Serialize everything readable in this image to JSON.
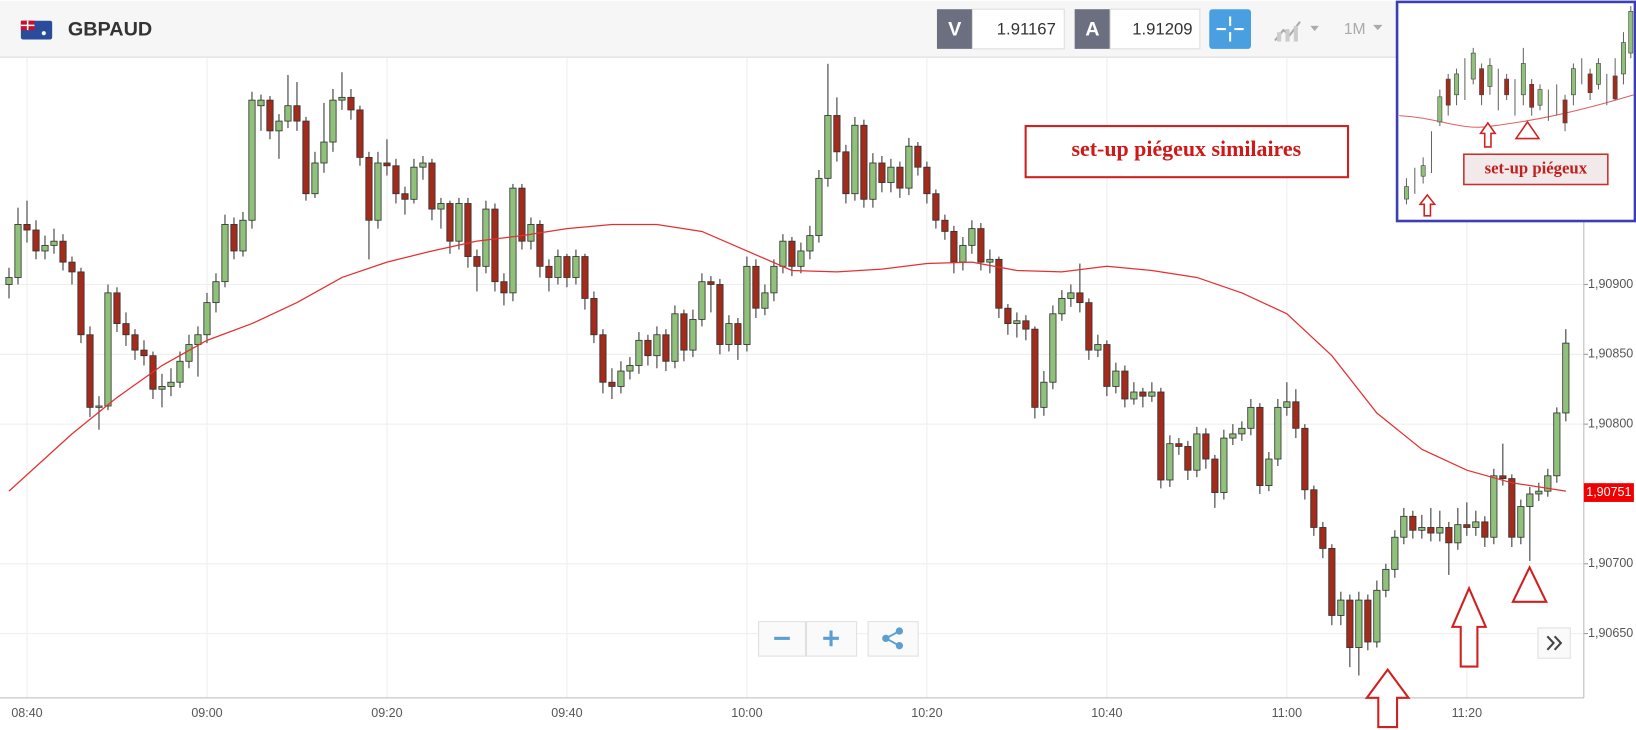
{
  "header": {
    "symbol": "GBPAUD",
    "sell_label": "V",
    "sell_price": "1.91167",
    "buy_label": "A",
    "buy_price": "1.91209",
    "timeframe": "1M"
  },
  "inset": {
    "annotation": "set-up piégeux"
  },
  "chart_data": {
    "type": "candlestick",
    "annotations": [
      "set-up piégeux similaires"
    ],
    "x": [
      "08:38",
      "08:39",
      "08:40",
      "08:41",
      "08:42",
      "08:43",
      "08:44",
      "08:45",
      "08:46",
      "08:47",
      "08:48",
      "08:49",
      "08:50",
      "08:51",
      "08:52",
      "08:53",
      "08:54",
      "08:55",
      "08:56",
      "08:57",
      "08:58",
      "08:59",
      "09:00",
      "09:01",
      "09:02",
      "09:03",
      "09:04",
      "09:05",
      "09:06",
      "09:07",
      "09:08",
      "09:09",
      "09:10",
      "09:11",
      "09:12",
      "09:13",
      "09:14",
      "09:15",
      "09:16",
      "09:17",
      "09:18",
      "09:19",
      "09:20",
      "09:21",
      "09:22",
      "09:23",
      "09:24",
      "09:25",
      "09:26",
      "09:27",
      "09:28",
      "09:29",
      "09:30",
      "09:31",
      "09:32",
      "09:33",
      "09:34",
      "09:35",
      "09:36",
      "09:37",
      "09:38",
      "09:39",
      "09:40",
      "09:41",
      "09:42",
      "09:43",
      "09:44",
      "09:45",
      "09:46",
      "09:47",
      "09:48",
      "09:49",
      "09:50",
      "09:51",
      "09:52",
      "09:53",
      "09:54",
      "09:55",
      "09:56",
      "09:57",
      "09:58",
      "09:59",
      "10:00",
      "10:01",
      "10:02",
      "10:03",
      "10:04",
      "10:05",
      "10:06",
      "10:07",
      "10:08",
      "10:09",
      "10:10",
      "10:11",
      "10:12",
      "10:13",
      "10:14",
      "10:15",
      "10:16",
      "10:17",
      "10:18",
      "10:19",
      "10:20",
      "10:21",
      "10:22",
      "10:23",
      "10:24",
      "10:25",
      "10:26",
      "10:27",
      "10:28",
      "10:29",
      "10:30",
      "10:31",
      "10:32",
      "10:33",
      "10:34",
      "10:35",
      "10:36",
      "10:37",
      "10:38",
      "10:39",
      "10:40",
      "10:41",
      "10:42",
      "10:43",
      "10:44",
      "10:45",
      "10:46",
      "10:47",
      "10:48",
      "10:49",
      "10:50",
      "10:51",
      "10:52",
      "10:53",
      "10:54",
      "10:55",
      "10:56",
      "10:57",
      "10:58",
      "10:59",
      "11:00",
      "11:01",
      "11:02",
      "11:03",
      "11:04",
      "11:05",
      "11:06",
      "11:07",
      "11:08",
      "11:09",
      "11:10",
      "11:11",
      "11:12",
      "11:13",
      "11:14",
      "11:15",
      "11:16",
      "11:17",
      "11:18",
      "11:19",
      "11:20",
      "11:21",
      "11:22",
      "11:23",
      "11:24",
      "11:25",
      "11:26",
      "11:27",
      "11:28",
      "11:29",
      "11:30",
      "11:31"
    ],
    "ohlc": [
      [
        1.909,
        1.90912,
        1.9089,
        1.90905
      ],
      [
        1.90905,
        1.90955,
        1.909,
        1.90943
      ],
      [
        1.90943,
        1.9096,
        1.9093,
        1.90939
      ],
      [
        1.90939,
        1.90946,
        1.90918,
        1.90924
      ],
      [
        1.90924,
        1.90935,
        1.90918,
        1.90928
      ],
      [
        1.90928,
        1.9094,
        1.90922,
        1.90931
      ],
      [
        1.90931,
        1.90936,
        1.9091,
        1.90916
      ],
      [
        1.90916,
        1.9092,
        1.909,
        1.90909
      ],
      [
        1.90909,
        1.90912,
        1.90858,
        1.90864
      ],
      [
        1.90864,
        1.9087,
        1.90805,
        1.90812
      ],
      [
        1.90812,
        1.9082,
        1.90796,
        1.90813
      ],
      [
        1.90813,
        1.909,
        1.9081,
        1.90894
      ],
      [
        1.90894,
        1.90898,
        1.90866,
        1.90872
      ],
      [
        1.90872,
        1.9088,
        1.90856,
        1.90864
      ],
      [
        1.90864,
        1.90868,
        1.90846,
        1.90853
      ],
      [
        1.90853,
        1.9086,
        1.90842,
        1.90849
      ],
      [
        1.90849,
        1.90852,
        1.90818,
        1.90825
      ],
      [
        1.90825,
        1.90836,
        1.90812,
        1.90827
      ],
      [
        1.90827,
        1.9084,
        1.9082,
        1.9083
      ],
      [
        1.9083,
        1.90852,
        1.90826,
        1.90845
      ],
      [
        1.90845,
        1.90864,
        1.9084,
        1.90857
      ],
      [
        1.90857,
        1.9087,
        1.90834,
        1.90864
      ],
      [
        1.90864,
        1.90894,
        1.90858,
        1.90887
      ],
      [
        1.90887,
        1.90908,
        1.9088,
        1.90902
      ],
      [
        1.90902,
        1.9095,
        1.90898,
        1.90943
      ],
      [
        1.90943,
        1.90948,
        1.90918,
        1.90924
      ],
      [
        1.90924,
        1.90952,
        1.9092,
        1.90946
      ],
      [
        1.90946,
        1.91038,
        1.9094,
        1.91032
      ],
      [
        1.91028,
        1.91036,
        1.9101,
        1.91032
      ],
      [
        1.91032,
        1.91035,
        1.91004,
        1.9101
      ],
      [
        1.9101,
        1.91022,
        1.9099,
        1.91017
      ],
      [
        1.91017,
        1.9105,
        1.91012,
        1.91028
      ],
      [
        1.91028,
        1.91045,
        1.9101,
        1.91017
      ],
      [
        1.91017,
        1.9102,
        1.9096,
        1.90965
      ],
      [
        1.90965,
        1.90995,
        1.90962,
        1.90987
      ],
      [
        1.90987,
        1.9103,
        1.9098,
        1.91002
      ],
      [
        1.91002,
        1.9104,
        1.90995,
        1.91032
      ],
      [
        1.91032,
        1.91052,
        1.91025,
        1.91034
      ],
      [
        1.91034,
        1.9104,
        1.91018,
        1.91025
      ],
      [
        1.91025,
        1.91028,
        1.90985,
        1.90991
      ],
      [
        1.90991,
        1.90995,
        1.90918,
        1.90946
      ],
      [
        1.90946,
        1.90995,
        1.9094,
        1.90987
      ],
      [
        1.90987,
        1.91004,
        1.90978,
        1.90985
      ],
      [
        1.90985,
        1.9099,
        1.90958,
        1.90965
      ],
      [
        1.90965,
        1.9097,
        1.9095,
        1.90961
      ],
      [
        1.90961,
        1.9099,
        1.90958,
        1.90984
      ],
      [
        1.90984,
        1.90992,
        1.90975,
        1.90987
      ],
      [
        1.90987,
        1.9099,
        1.90946,
        1.90954
      ],
      [
        1.90954,
        1.90962,
        1.9094,
        1.90958
      ],
      [
        1.90958,
        1.9096,
        1.90922,
        1.90931
      ],
      [
        1.90931,
        1.90962,
        1.90925,
        1.90958
      ],
      [
        1.90958,
        1.90962,
        1.90912,
        1.9092
      ],
      [
        1.9092,
        1.90925,
        1.90895,
        1.90913
      ],
      [
        1.90913,
        1.9096,
        1.90908,
        1.90954
      ],
      [
        1.90954,
        1.90958,
        1.90895,
        1.90902
      ],
      [
        1.90902,
        1.90908,
        1.90885,
        1.90894
      ],
      [
        1.90894,
        1.90972,
        1.90888,
        1.90969
      ],
      [
        1.90969,
        1.90972,
        1.90925,
        1.90931
      ],
      [
        1.90931,
        1.90948,
        1.90925,
        1.90943
      ],
      [
        1.90943,
        1.90946,
        1.90905,
        1.90913
      ],
      [
        1.90913,
        1.90918,
        1.90895,
        1.90905
      ],
      [
        1.90905,
        1.90925,
        1.909,
        1.9092
      ],
      [
        1.9092,
        1.90922,
        1.90898,
        1.90905
      ],
      [
        1.90905,
        1.90925,
        1.909,
        1.9092
      ],
      [
        1.9092,
        1.90922,
        1.90882,
        1.9089
      ],
      [
        1.9089,
        1.90895,
        1.90858,
        1.90864
      ],
      [
        1.90864,
        1.90868,
        1.90822,
        1.9083
      ],
      [
        1.9083,
        1.9084,
        1.90818,
        1.90827
      ],
      [
        1.90827,
        1.90845,
        1.90822,
        1.90838
      ],
      [
        1.90838,
        1.90848,
        1.90832,
        1.90842
      ],
      [
        1.90842,
        1.90866,
        1.90836,
        1.9086
      ],
      [
        1.9086,
        1.90864,
        1.90842,
        1.90849
      ],
      [
        1.90849,
        1.9087,
        1.9084,
        1.90864
      ],
      [
        1.90864,
        1.90868,
        1.90838,
        1.90845
      ],
      [
        1.90845,
        1.90885,
        1.9084,
        1.90879
      ],
      [
        1.90879,
        1.90882,
        1.90845,
        1.90853
      ],
      [
        1.90853,
        1.90882,
        1.90848,
        1.90875
      ],
      [
        1.90875,
        1.90908,
        1.9087,
        1.90902
      ],
      [
        1.90902,
        1.90906,
        1.9088,
        1.909
      ],
      [
        1.909,
        1.90904,
        1.9085,
        1.90857
      ],
      [
        1.90857,
        1.90878,
        1.90852,
        1.90872
      ],
      [
        1.90872,
        1.90876,
        1.90846,
        1.90857
      ],
      [
        1.90857,
        1.9092,
        1.90852,
        1.90913
      ],
      [
        1.90913,
        1.90918,
        1.90876,
        1.90883
      ],
      [
        1.90883,
        1.909,
        1.90878,
        1.90894
      ],
      [
        1.90894,
        1.90918,
        1.90888,
        1.90913
      ],
      [
        1.90913,
        1.90936,
        1.90908,
        1.90931
      ],
      [
        1.90931,
        1.90934,
        1.90906,
        1.90913
      ],
      [
        1.90913,
        1.9093,
        1.90908,
        1.90924
      ],
      [
        1.90924,
        1.90942,
        1.90918,
        1.90935
      ],
      [
        1.90935,
        1.90982,
        1.9093,
        1.90976
      ],
      [
        1.90976,
        1.91058,
        1.9097,
        1.91021
      ],
      [
        1.91021,
        1.91034,
        1.90988,
        1.90995
      ],
      [
        1.90995,
        1.91,
        1.90958,
        1.90965
      ],
      [
        1.90965,
        1.9102,
        1.9096,
        1.91014
      ],
      [
        1.91014,
        1.91018,
        1.90955,
        1.90961
      ],
      [
        1.90961,
        1.90994,
        1.90955,
        1.90987
      ],
      [
        1.90987,
        1.90992,
        1.90966,
        1.90973
      ],
      [
        1.90973,
        1.9099,
        1.90966,
        1.90984
      ],
      [
        1.90984,
        1.90988,
        1.90962,
        1.90969
      ],
      [
        1.90969,
        1.91005,
        1.90964,
        1.90999
      ],
      [
        1.90999,
        1.91002,
        1.90978,
        1.90984
      ],
      [
        1.90984,
        1.90988,
        1.90958,
        1.90965
      ],
      [
        1.90965,
        1.90968,
        1.9094,
        1.90946
      ],
      [
        1.90946,
        1.9095,
        1.90932,
        1.90938
      ],
      [
        1.90938,
        1.90942,
        1.90908,
        1.90916
      ],
      [
        1.90916,
        1.90934,
        1.9091,
        1.90928
      ],
      [
        1.90928,
        1.90946,
        1.90922,
        1.9094
      ],
      [
        1.9094,
        1.90944,
        1.9091,
        1.90916
      ],
      [
        1.90916,
        1.90925,
        1.90908,
        1.90918
      ],
      [
        1.90918,
        1.9092,
        1.90876,
        1.90883
      ],
      [
        1.90883,
        1.90886,
        1.90864,
        1.90872
      ],
      [
        1.90872,
        1.9088,
        1.90862,
        1.90874
      ],
      [
        1.90874,
        1.90878,
        1.9086,
        1.90868
      ],
      [
        1.90868,
        1.9087,
        1.90804,
        1.90812
      ],
      [
        1.90812,
        1.90838,
        1.90806,
        1.9083
      ],
      [
        1.9083,
        1.90885,
        1.90825,
        1.90879
      ],
      [
        1.90879,
        1.90896,
        1.90874,
        1.9089
      ],
      [
        1.9089,
        1.909,
        1.90884,
        1.90894
      ],
      [
        1.90894,
        1.90915,
        1.9088,
        1.90887
      ],
      [
        1.90887,
        1.9089,
        1.90846,
        1.90853
      ],
      [
        1.90853,
        1.90864,
        1.90848,
        1.90857
      ],
      [
        1.90857,
        1.9086,
        1.9082,
        1.90827
      ],
      [
        1.90827,
        1.90844,
        1.90822,
        1.90838
      ],
      [
        1.90838,
        1.90842,
        1.90812,
        1.90818
      ],
      [
        1.90818,
        1.9083,
        1.90814,
        1.90823
      ],
      [
        1.90823,
        1.90826,
        1.90812,
        1.9082
      ],
      [
        1.9082,
        1.9083,
        1.90816,
        1.90823
      ],
      [
        1.90823,
        1.90826,
        1.90754,
        1.9076
      ],
      [
        1.9076,
        1.90792,
        1.90755,
        1.90786
      ],
      [
        1.90786,
        1.9079,
        1.90778,
        1.90784
      ],
      [
        1.90784,
        1.90788,
        1.9076,
        1.90767
      ],
      [
        1.90767,
        1.90798,
        1.90762,
        1.90793
      ],
      [
        1.90793,
        1.90797,
        1.90768,
        1.90775
      ],
      [
        1.90775,
        1.90778,
        1.9074,
        1.90751
      ],
      [
        1.90751,
        1.90796,
        1.90746,
        1.9079
      ],
      [
        1.9079,
        1.908,
        1.90785,
        1.90793
      ],
      [
        1.90793,
        1.90802,
        1.90788,
        1.90797
      ],
      [
        1.90797,
        1.90818,
        1.90792,
        1.90812
      ],
      [
        1.90812,
        1.90815,
        1.9075,
        1.90756
      ],
      [
        1.90756,
        1.9078,
        1.90752,
        1.90775
      ],
      [
        1.90775,
        1.90818,
        1.9077,
        1.90812
      ],
      [
        1.90812,
        1.9083,
        1.90806,
        1.90816
      ],
      [
        1.90816,
        1.90825,
        1.9079,
        1.90797
      ],
      [
        1.90797,
        1.908,
        1.90746,
        1.90753
      ],
      [
        1.90753,
        1.90756,
        1.9072,
        1.90726
      ],
      [
        1.90726,
        1.9073,
        1.90704,
        1.90711
      ],
      [
        1.90711,
        1.90714,
        1.90656,
        1.90663
      ],
      [
        1.90663,
        1.9068,
        1.90656,
        1.90674
      ],
      [
        1.90674,
        1.90678,
        1.90626,
        1.9064
      ],
      [
        1.9064,
        1.9068,
        1.9062,
        1.90674
      ],
      [
        1.90674,
        1.90678,
        1.90638,
        1.90644
      ],
      [
        1.90644,
        1.90688,
        1.9064,
        1.90681
      ],
      [
        1.90681,
        1.907,
        1.90676,
        1.90696
      ],
      [
        1.90696,
        1.90724,
        1.9069,
        1.90719
      ],
      [
        1.90719,
        1.9074,
        1.90714,
        1.90734
      ],
      [
        1.90734,
        1.90738,
        1.90718,
        1.90724
      ],
      [
        1.90724,
        1.90735,
        1.90718,
        1.90726
      ],
      [
        1.90726,
        1.9074,
        1.90716,
        1.90722
      ],
      [
        1.90722,
        1.90738,
        1.90716,
        1.90726
      ],
      [
        1.90726,
        1.9073,
        1.90692,
        1.90715
      ],
      [
        1.90715,
        1.9074,
        1.9071,
        1.90728
      ],
      [
        1.90728,
        1.90744,
        1.9072,
        1.90726
      ],
      [
        1.90726,
        1.90738,
        1.9072,
        1.9073
      ],
      [
        1.9073,
        1.90734,
        1.90712,
        1.90719
      ],
      [
        1.90719,
        1.90768,
        1.90714,
        1.90763
      ],
      [
        1.90763,
        1.90786,
        1.90756,
        1.90761
      ],
      [
        1.90761,
        1.90764,
        1.90712,
        1.90719
      ],
      [
        1.90719,
        1.90746,
        1.90714,
        1.90741
      ],
      [
        1.90741,
        1.90755,
        1.90702,
        1.9075
      ],
      [
        1.9075,
        1.90758,
        1.90745,
        1.90752
      ],
      [
        1.90752,
        1.90768,
        1.90748,
        1.90763
      ],
      [
        1.90763,
        1.90812,
        1.90758,
        1.90808
      ],
      [
        1.90808,
        1.90868,
        1.90802,
        1.90858
      ]
    ],
    "up_color": "#8fc17a",
    "down_color": "#a32b1b",
    "moving_average": {
      "color": "#e53030",
      "x": [
        "08:38",
        "08:45",
        "08:50",
        "08:55",
        "09:00",
        "09:05",
        "09:10",
        "09:15",
        "09:20",
        "09:25",
        "09:30",
        "09:35",
        "09:40",
        "09:45",
        "09:50",
        "09:55",
        "10:00",
        "10:05",
        "10:10",
        "10:15",
        "10:20",
        "10:25",
        "10:30",
        "10:35",
        "10:40",
        "10:45",
        "10:50",
        "10:55",
        "11:00",
        "11:05",
        "11:10",
        "11:15",
        "11:20",
        "11:25",
        "11:31"
      ],
      "values": [
        1.90752,
        1.90793,
        1.90819,
        1.90842,
        1.9086,
        1.90872,
        1.90887,
        1.90905,
        1.90916,
        1.90924,
        1.90931,
        1.90935,
        1.9094,
        1.90943,
        1.90943,
        1.90938,
        1.90924,
        1.9091,
        1.90909,
        1.90911,
        1.90915,
        1.90916,
        1.9091,
        1.90909,
        1.90913,
        1.9091,
        1.90905,
        1.90894,
        1.90879,
        1.90849,
        1.90808,
        1.90782,
        1.90767,
        1.90758,
        1.90752
      ]
    },
    "xlim": [
      "08:37",
      "11:33"
    ],
    "xticks": [
      "08:40",
      "09:00",
      "09:20",
      "09:40",
      "10:00",
      "10:20",
      "10:40",
      "11:00",
      "11:20"
    ],
    "ylim": [
      1.90604,
      1.91062
    ],
    "yticks": [
      {
        "value": 1.909,
        "label": "1,90900"
      },
      {
        "value": 1.9085,
        "label": "1,90850"
      },
      {
        "value": 1.908,
        "label": "1,90800"
      },
      {
        "value": 1.907,
        "label": "1,90700"
      },
      {
        "value": 1.9065,
        "label": "1,90650"
      }
    ],
    "last_price": {
      "value": 1.90751,
      "label": "1,90751"
    },
    "grid": true
  }
}
